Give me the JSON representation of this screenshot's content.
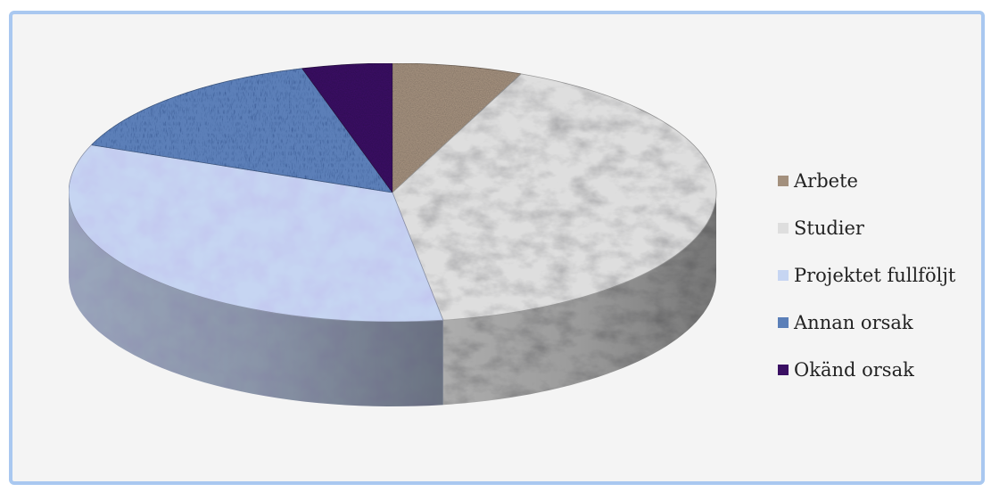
{
  "chart_data": {
    "type": "pie",
    "variant": "3d",
    "title": "",
    "legend_position": "right",
    "slices": [
      {
        "label": "Arbete",
        "value": 6.5,
        "color": "#a3907d"
      },
      {
        "label": "Studier",
        "value": 41,
        "color": "#dedede"
      },
      {
        "label": "Projektet fullföljt",
        "value": 33.5,
        "color": "#c6d5f2"
      },
      {
        "label": "Annan orsak",
        "value": 14.5,
        "color": "#5b7fb8"
      },
      {
        "label": "Okänd orsak",
        "value": 4.5,
        "color": "#3a0f63"
      }
    ]
  },
  "frame": {
    "border_color": "#a9c8f0",
    "background": "#f4f4f4"
  }
}
